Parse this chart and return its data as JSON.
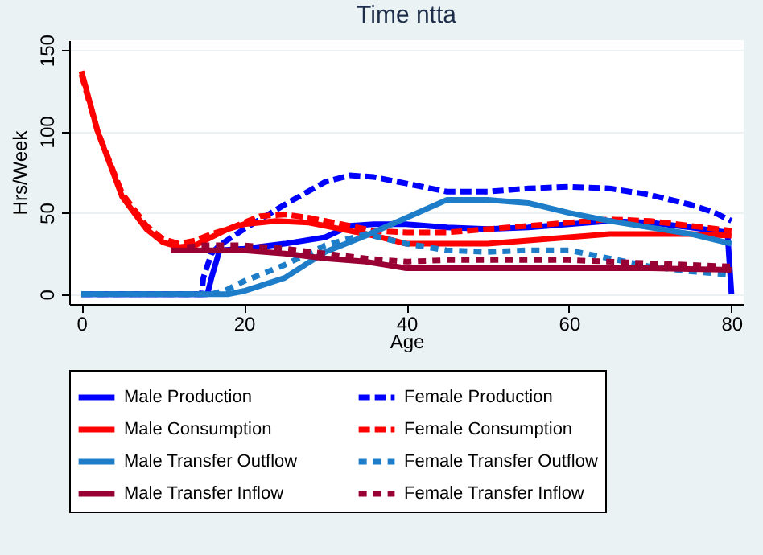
{
  "chart_data": {
    "type": "line",
    "title": "Time ntta",
    "xlabel": "Age",
    "ylabel": "Hrs/Week",
    "xlim": [
      -1.5,
      81.5
    ],
    "xticks": [
      0,
      20,
      40,
      60,
      80
    ],
    "ylim": [
      -6,
      156
    ],
    "yticks": [
      0,
      50,
      100,
      150
    ],
    "grid": "y",
    "legend": "bottom",
    "marker": "none",
    "series": [
      {
        "name": "Male Production",
        "color": "#0000ff",
        "line_style": "solid",
        "x": [
          0,
          15.5,
          16,
          17,
          20,
          25,
          30,
          33,
          36,
          40,
          45,
          50,
          55,
          60,
          65,
          70,
          75,
          79.5,
          80
        ],
        "values": [
          0,
          0,
          10,
          27,
          28,
          31,
          35,
          42,
          43,
          43,
          41,
          40,
          41,
          43,
          45,
          44,
          41,
          38,
          0
        ]
      },
      {
        "name": "Female Production",
        "color": "#0000ff",
        "line_style": "dashed",
        "x": [
          0,
          14.8,
          15,
          16,
          17,
          20,
          25,
          30,
          33,
          36,
          40,
          45,
          50,
          55,
          60,
          65,
          70,
          75,
          78,
          80
        ],
        "values": [
          0,
          0,
          10,
          25,
          30,
          40,
          55,
          69,
          73,
          72,
          68,
          63,
          63,
          65,
          66,
          65,
          61,
          55,
          50,
          45
        ]
      },
      {
        "name": "Male Consumption",
        "color": "#ff0000",
        "line_style": "solid",
        "x": [
          0,
          2,
          5,
          8,
          10,
          12,
          14,
          16,
          18,
          20,
          24,
          28,
          32,
          36,
          40,
          45,
          50,
          55,
          60,
          65,
          70,
          75,
          80
        ],
        "values": [
          137,
          100,
          60,
          40,
          32,
          29,
          30,
          35,
          40,
          43,
          45,
          44,
          40,
          36,
          31,
          31,
          31,
          33,
          35,
          37,
          37,
          37,
          36
        ]
      },
      {
        "name": "Female Consumption",
        "color": "#ff0000",
        "line_style": "dashed",
        "x": [
          0,
          2,
          5,
          8,
          10,
          12,
          14,
          16,
          18,
          20,
          22,
          25,
          28,
          32,
          36,
          40,
          45,
          50,
          55,
          60,
          65,
          70,
          75,
          80
        ],
        "values": [
          135,
          100,
          62,
          42,
          34,
          31,
          33,
          37,
          40,
          44,
          48,
          49,
          47,
          43,
          39,
          38,
          38,
          40,
          42,
          44,
          46,
          45,
          42,
          39
        ]
      },
      {
        "name": "Male Transfer Outflow",
        "color": "#1e7dc8",
        "line_style": "solid",
        "x": [
          0,
          18,
          20,
          25,
          30,
          35,
          40,
          45,
          50,
          55,
          60,
          65,
          70,
          75,
          80
        ],
        "values": [
          0,
          0,
          2,
          10,
          26,
          36,
          47,
          58,
          58,
          56,
          50,
          45,
          41,
          37,
          31
        ]
      },
      {
        "name": "Female Transfer Outflow",
        "color": "#1e7dc8",
        "line_style": "dashed",
        "x": [
          0,
          16,
          18,
          20,
          25,
          30,
          35,
          40,
          45,
          50,
          55,
          60,
          65,
          70,
          75,
          80
        ],
        "values": [
          0,
          0,
          3,
          8,
          18,
          30,
          37,
          31,
          27,
          26,
          27,
          27,
          22,
          17,
          14,
          12
        ]
      },
      {
        "name": "Male Transfer Inflow",
        "color": "#990033",
        "line_style": "solid",
        "x": [
          11,
          15,
          20,
          25,
          30,
          35,
          40,
          45,
          50,
          60,
          70,
          80
        ],
        "values": [
          27,
          27,
          27,
          25,
          22,
          20,
          16,
          16,
          16,
          16,
          16,
          15
        ]
      },
      {
        "name": "Female Transfer Inflow",
        "color": "#990033",
        "line_style": "dashed",
        "x": [
          13,
          15,
          20,
          25,
          30,
          35,
          40,
          45,
          50,
          60,
          70,
          75,
          80
        ],
        "values": [
          29,
          30,
          30,
          28,
          25,
          22,
          20,
          21,
          21,
          21,
          19,
          18,
          17
        ]
      }
    ]
  }
}
